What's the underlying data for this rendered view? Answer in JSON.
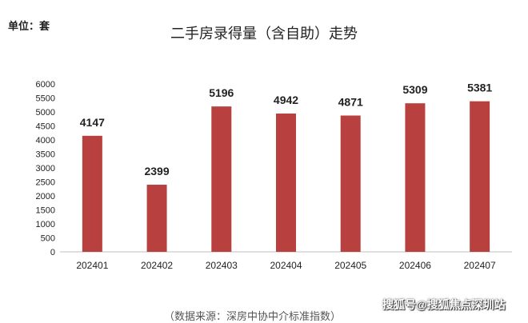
{
  "unit_label": "单位：套",
  "title": "二手房录得量（含自助）走势",
  "source_note": "（数据来源：深房中协中介标准指数）",
  "watermark": "搜狐号@搜狐焦点深圳站",
  "colors": {
    "bar": "#b8413f",
    "axis": "#bfbfbf",
    "text": "#222222"
  },
  "chart_data": {
    "type": "bar",
    "title": "二手房录得量（含自助）走势",
    "ylabel": "单位：套",
    "categories": [
      "202401",
      "202402",
      "202403",
      "202404",
      "202405",
      "202406",
      "202407"
    ],
    "values": [
      4147,
      2399,
      5196,
      4942,
      4871,
      5309,
      5381
    ],
    "ylim": [
      0,
      6000
    ],
    "yticks": [
      0,
      500,
      1000,
      1500,
      2000,
      2500,
      3000,
      3500,
      4000,
      4500,
      5000,
      5500,
      6000
    ],
    "grid": false,
    "data_labels": true
  }
}
